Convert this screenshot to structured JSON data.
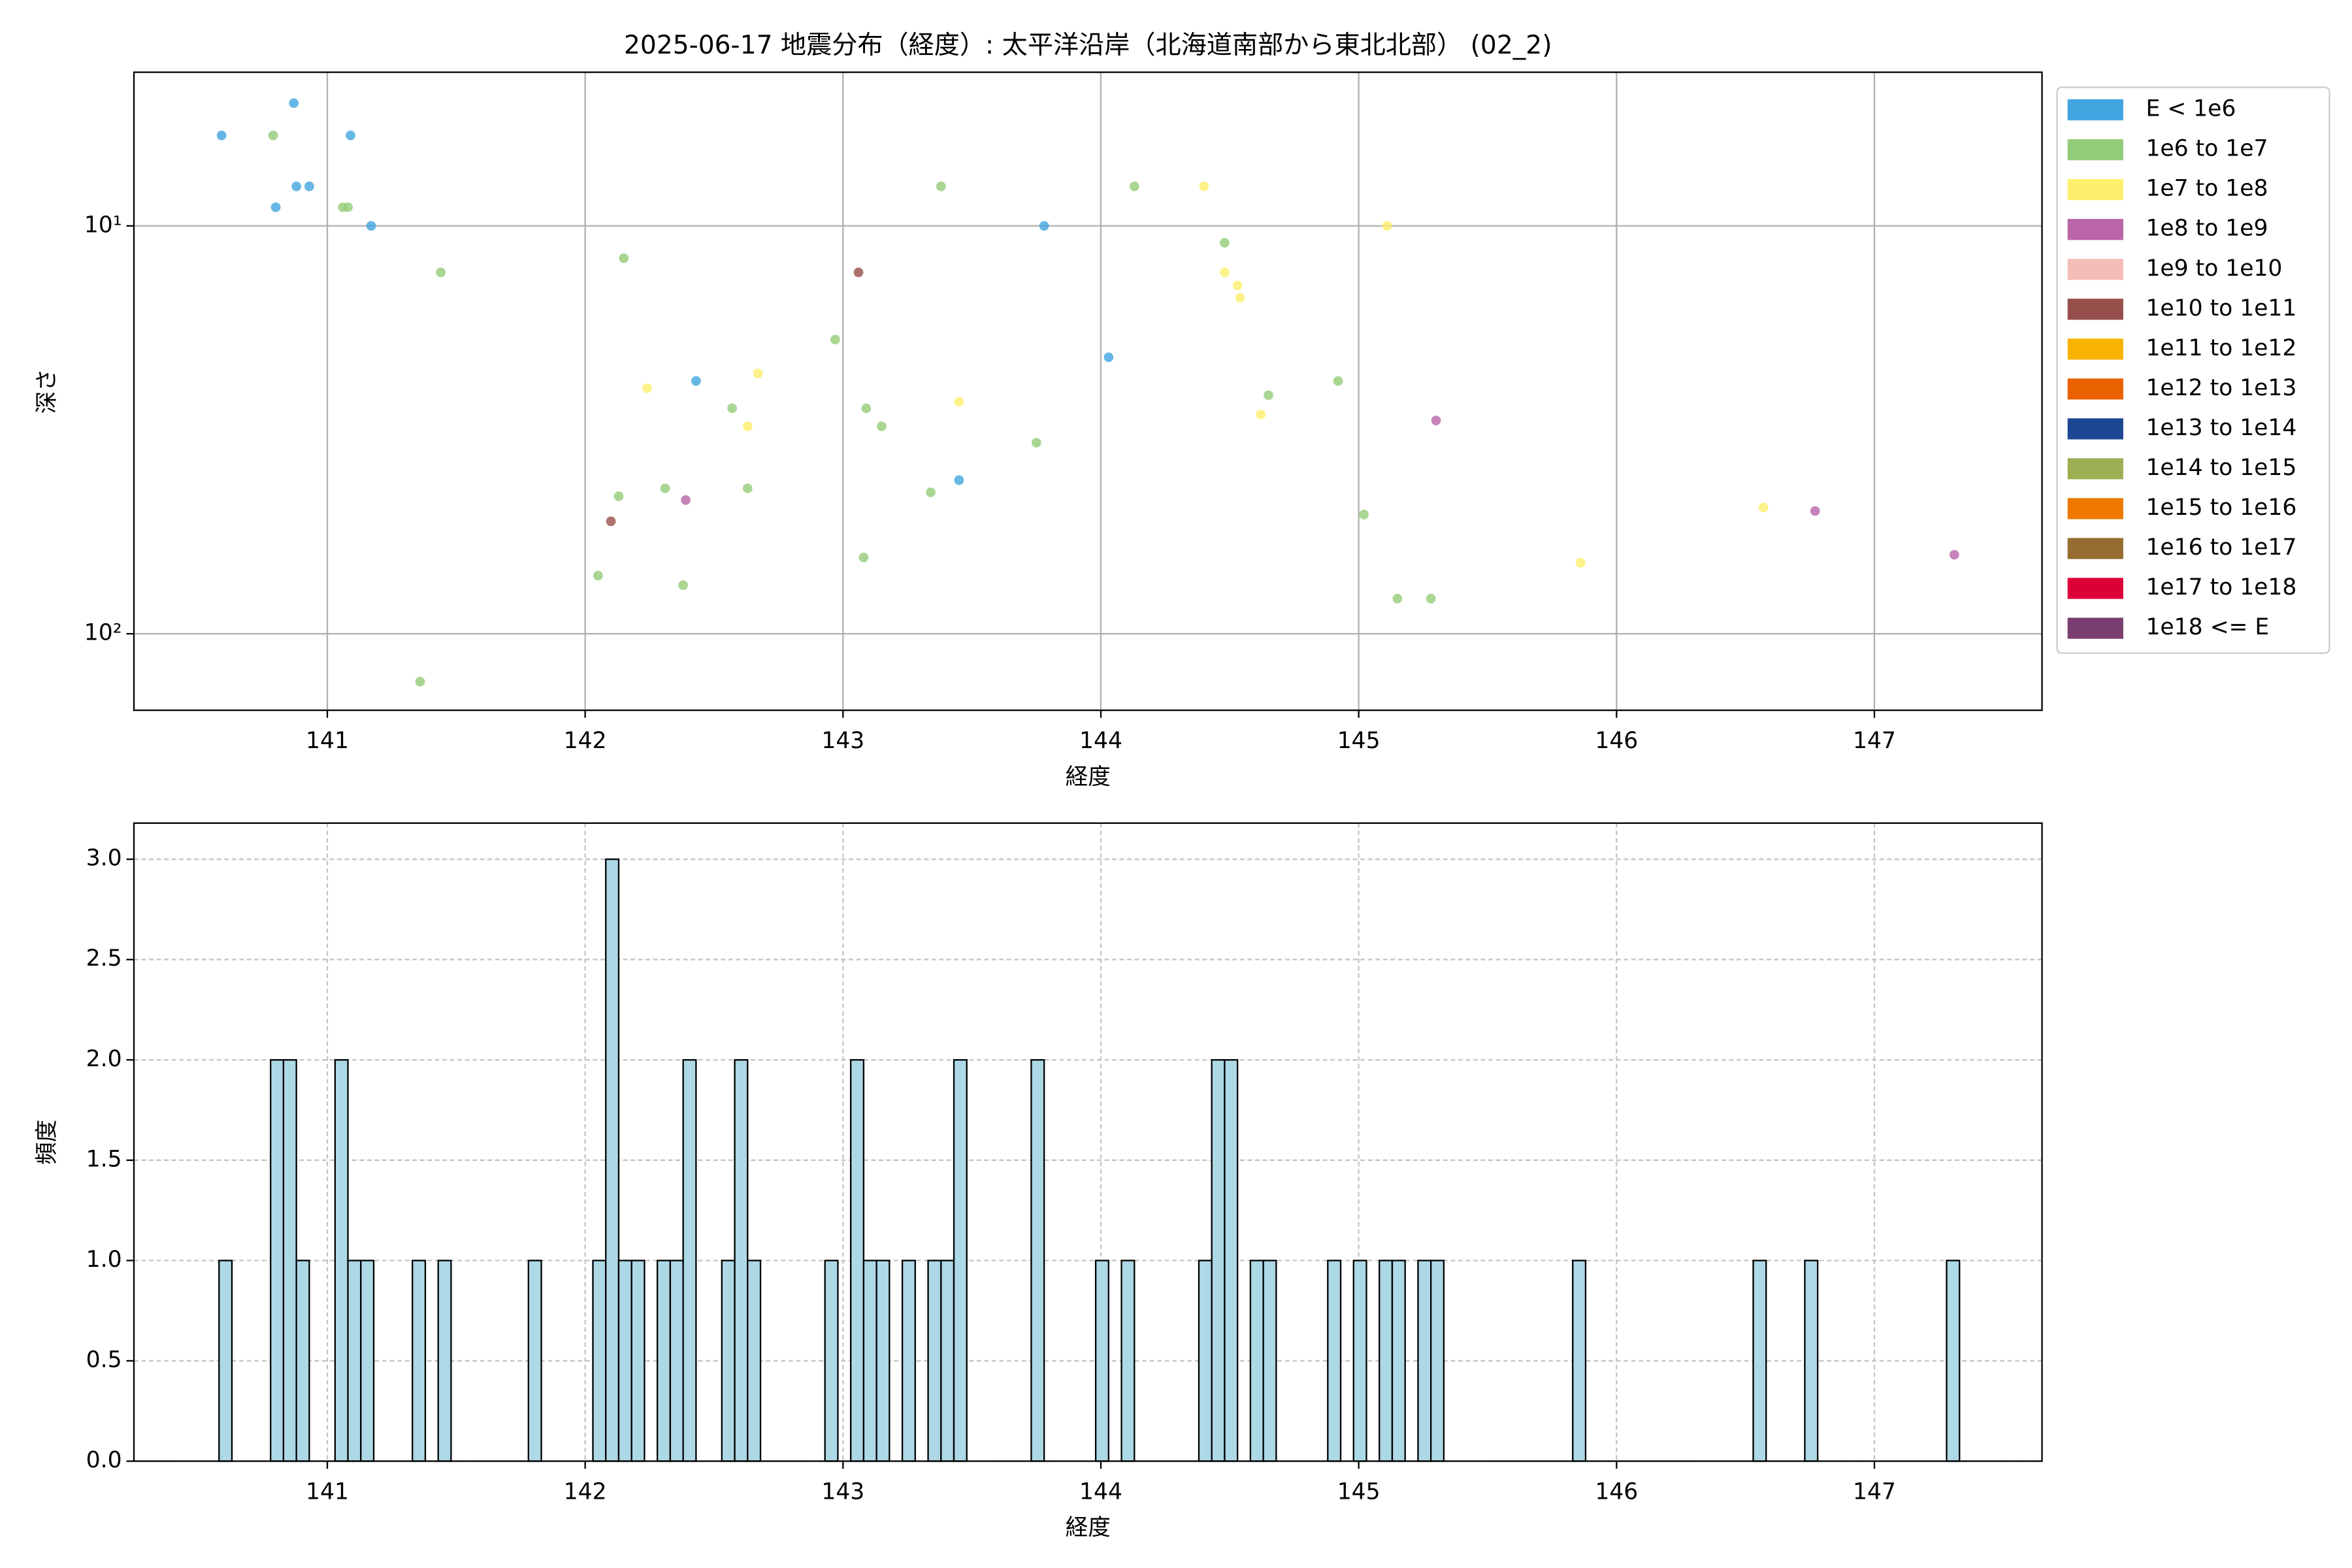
{
  "chart_data": [
    {
      "type": "scatter",
      "title": "2025-06-17 地震分布（経度）: 太平洋沿岸（北海道南部から東北北部） (02_2)",
      "xlabel": "経度",
      "ylabel": "深さ",
      "xlim": [
        140.25,
        147.65
      ],
      "xticks": [
        141,
        142,
        143,
        144,
        145,
        146,
        147
      ],
      "ylim": [
        4.2,
        154
      ],
      "yticks": [
        {
          "value": 10,
          "label": "10¹"
        },
        {
          "value": 100,
          "label": "10²"
        }
      ],
      "log_y": true,
      "y_inverted": true,
      "grid": true,
      "grid_linestyle": "solid",
      "legend": "outside-right",
      "series": [
        {
          "name": "E < 1e6",
          "color": "#41a5e0",
          "x": [
            140.59,
            140.87,
            140.8,
            140.88,
            140.93,
            141.09,
            141.17,
            142.43,
            143.45,
            143.78,
            144.03
          ],
          "values": [
            6,
            5,
            9,
            8,
            8,
            6,
            10,
            24,
            42,
            10,
            21
          ]
        },
        {
          "name": "1e6 to 1e7",
          "color": "#93cc78",
          "x": [
            140.79,
            141.06,
            141.08,
            141.44,
            142.15,
            142.97,
            142.57,
            143.09,
            143.15,
            143.38,
            144.13,
            144.48,
            144.65,
            144.92,
            143.75,
            142.31,
            142.13,
            142.63,
            143.34,
            142.05,
            142.38,
            143.08,
            141.36,
            145.02,
            145.15,
            145.28
          ],
          "values": [
            6,
            9,
            9,
            13,
            12,
            19,
            28,
            28,
            31,
            8,
            8,
            11,
            26,
            24,
            34,
            44,
            46,
            44,
            45,
            72,
            76,
            65,
            131,
            51,
            82,
            82
          ]
        },
        {
          "name": "1e7 to 1e8",
          "color": "#fdef6b",
          "x": [
            142.24,
            142.67,
            142.63,
            143.45,
            144.4,
            144.48,
            144.53,
            144.54,
            144.62,
            145.11,
            145.86,
            146.57
          ],
          "values": [
            25,
            23,
            31,
            27,
            8,
            13,
            14,
            15,
            29,
            10,
            67,
            49
          ]
        },
        {
          "name": "1e8 to 1e9",
          "color": "#b965a8",
          "x": [
            142.39,
            145.3,
            146.77,
            147.31
          ],
          "values": [
            47,
            30,
            50,
            64
          ]
        },
        {
          "name": "1e9 to 1e10",
          "color": "#f5bdb8",
          "x": [],
          "values": []
        },
        {
          "name": "1e10 to 1e11",
          "color": "#964f4a",
          "x": [
            143.06,
            142.1
          ],
          "values": [
            13,
            53
          ]
        },
        {
          "name": "1e11 to 1e12",
          "color": "#f8b300",
          "x": [],
          "values": []
        },
        {
          "name": "1e12 to 1e13",
          "color": "#ea6200",
          "x": [],
          "values": []
        },
        {
          "name": "1e13 to 1e14",
          "color": "#1b4792",
          "x": [],
          "values": []
        },
        {
          "name": "1e14 to 1e15",
          "color": "#9daf53",
          "x": [],
          "values": []
        },
        {
          "name": "1e15 to 1e16",
          "color": "#ee7800",
          "x": [],
          "values": []
        },
        {
          "name": "1e16 to 1e17",
          "color": "#946d2f",
          "x": [],
          "values": []
        },
        {
          "name": "1e17 to 1e18",
          "color": "#dd0038",
          "x": [],
          "values": []
        },
        {
          "name": "1e18 <= E",
          "color": "#7a3e70",
          "x": [],
          "values": []
        }
      ]
    },
    {
      "type": "histogram",
      "xlabel": "経度",
      "ylabel": "頻度",
      "xlim": [
        140.25,
        147.65
      ],
      "xticks": [
        141,
        142,
        143,
        144,
        145,
        146,
        147
      ],
      "ylim": [
        0,
        3.18
      ],
      "yticks": [
        {
          "value": 0,
          "label": "0.0"
        },
        0.5,
        {
          "value": 1,
          "label": "1.0"
        },
        1.5,
        {
          "value": 2,
          "label": "2.0"
        },
        2.5,
        {
          "value": 3,
          "label": "3.0"
        }
      ],
      "grid": true,
      "grid_linestyle": "dashed",
      "color": "#add8e6",
      "edgecolor": "#000000",
      "bins": [
        140.58,
        140.63,
        140.68,
        140.73,
        140.78,
        140.83,
        140.88,
        140.93,
        140.98,
        141.03,
        141.08,
        141.13,
        141.18,
        141.23,
        141.28,
        141.33,
        141.38,
        141.43,
        141.48,
        141.53,
        141.58,
        141.63,
        141.68,
        141.73,
        141.78,
        141.83,
        141.88,
        141.93,
        141.98,
        142.03,
        142.08,
        142.13,
        142.18,
        142.23,
        142.28,
        142.33,
        142.38,
        142.43,
        142.48,
        142.53,
        142.58,
        142.63,
        142.68,
        142.73,
        142.78,
        142.83,
        142.88,
        142.93,
        142.98,
        143.03,
        143.08,
        143.13,
        143.18,
        143.23,
        143.28,
        143.33,
        143.38,
        143.43,
        143.48,
        143.53,
        143.58,
        143.63,
        143.68,
        143.73,
        143.78,
        143.83,
        143.88,
        143.93,
        143.98,
        144.03,
        144.08,
        144.13,
        144.18,
        144.23,
        144.28,
        144.33,
        144.38,
        144.43,
        144.48,
        144.53,
        144.58,
        144.63,
        144.68,
        144.73,
        144.78,
        144.83,
        144.88,
        144.93,
        144.98,
        145.03,
        145.08,
        145.13,
        145.18,
        145.23,
        145.28,
        145.33,
        145.38,
        145.43,
        145.48,
        145.53,
        145.58,
        145.63,
        145.68,
        145.73,
        145.78,
        145.83,
        145.88,
        145.93,
        145.98,
        146.03,
        146.08,
        146.13,
        146.18,
        146.23,
        146.28,
        146.33,
        146.38,
        146.43,
        146.48,
        146.53,
        146.58,
        146.63,
        146.68,
        146.73,
        146.78,
        146.83,
        146.88,
        146.93,
        146.98,
        147.03,
        147.08,
        147.13,
        147.18,
        147.23,
        147.28,
        147.33
      ],
      "counts": [
        1,
        0,
        0,
        0,
        2,
        2,
        1,
        0,
        0,
        2,
        1,
        1,
        0,
        0,
        0,
        1,
        0,
        1,
        0,
        0,
        0,
        0,
        0,
        0,
        1,
        0,
        0,
        0,
        0,
        1,
        3,
        1,
        1,
        0,
        1,
        1,
        2,
        0,
        0,
        1,
        2,
        1,
        0,
        0,
        0,
        0,
        0,
        1,
        0,
        2,
        1,
        1,
        0,
        1,
        0,
        1,
        1,
        2,
        0,
        0,
        0,
        0,
        0,
        2,
        0,
        0,
        0,
        0,
        1,
        0,
        1,
        0,
        0,
        0,
        0,
        0,
        1,
        2,
        2,
        0,
        1,
        1,
        0,
        0,
        0,
        0,
        1,
        0,
        1,
        0,
        1,
        1,
        0,
        1,
        1,
        0,
        0,
        0,
        0,
        0,
        0,
        0,
        0,
        0,
        0,
        1,
        0,
        0,
        0,
        0,
        0,
        0,
        0,
        0,
        0,
        0,
        0,
        0,
        0,
        1,
        0,
        0,
        0,
        1,
        0,
        0,
        0,
        0,
        0,
        0,
        0,
        0,
        0,
        0,
        1
      ]
    }
  ]
}
